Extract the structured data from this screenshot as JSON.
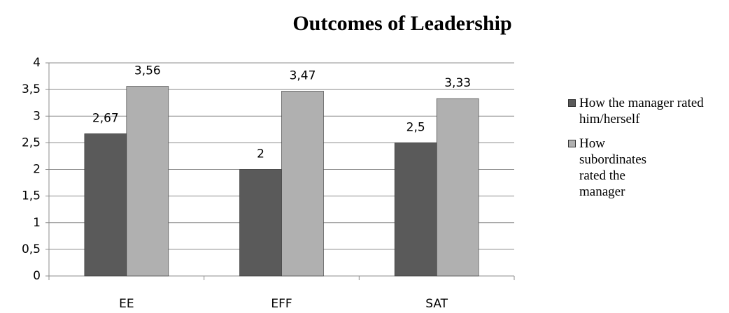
{
  "chart_data": {
    "type": "bar",
    "title": "Outcomes of Leadership",
    "categories": [
      "EE",
      "EFF",
      "SAT"
    ],
    "series": [
      {
        "name": "How the manager rated him/herself",
        "color": "#5a5a5a",
        "values": [
          2.67,
          2,
          2.5
        ],
        "value_labels": [
          "2,67",
          "2",
          "2,5"
        ]
      },
      {
        "name": "How subordinates rated the manager",
        "color": "#b0b0b0",
        "values": [
          3.56,
          3.47,
          3.33
        ],
        "value_labels": [
          "3,56",
          "3,47",
          "3,33"
        ]
      }
    ],
    "ylim": [
      0,
      4
    ],
    "yticks": [
      0,
      {
        "value": 0.5,
        "label": "0,5"
      },
      1,
      {
        "value": 1.5,
        "label": "1,5"
      },
      2,
      {
        "value": 2.5,
        "label": "2,5"
      },
      3,
      {
        "value": 3.5,
        "label": "3,5"
      },
      4
    ],
    "grid": true,
    "legend": "right"
  }
}
